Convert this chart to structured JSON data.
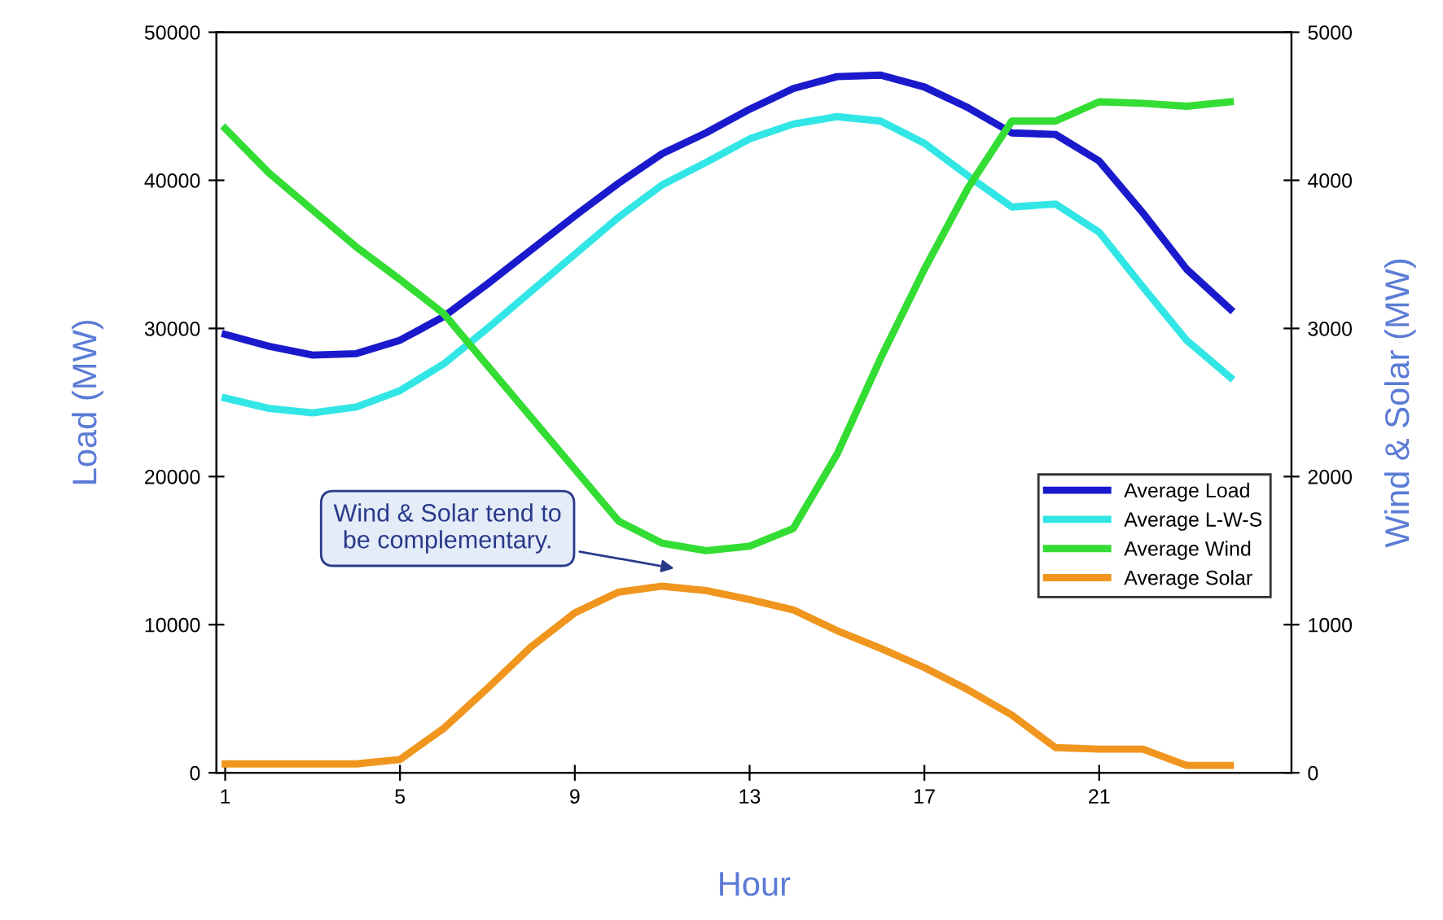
{
  "chart_data": {
    "type": "line",
    "xlabel": "Hour",
    "ylabel": "Load (MW)",
    "y2label": "Wind & Solar (MW)",
    "x": [
      1,
      2,
      3,
      4,
      5,
      6,
      7,
      8,
      9,
      10,
      11,
      12,
      13,
      14,
      15,
      16,
      17,
      18,
      19,
      20,
      21,
      22,
      23,
      24
    ],
    "xlim": [
      0.8,
      25.4
    ],
    "xticks": [
      1,
      5,
      9,
      13,
      17,
      21
    ],
    "ylim": [
      0,
      50000
    ],
    "yticks": [
      0,
      10000,
      20000,
      30000,
      40000,
      50000
    ],
    "y2lim": [
      0,
      5000
    ],
    "y2ticks": [
      0,
      1000,
      2000,
      3000,
      4000,
      5000
    ],
    "grid": false,
    "legend": "right",
    "marker": "none",
    "line_style": "solid",
    "series": [
      {
        "name": "Average Load",
        "color": "#1a1acc",
        "values": [
          29600,
          28800,
          28200,
          28300,
          29200,
          30800,
          33000,
          35300,
          37600,
          39800,
          41800,
          43200,
          44800,
          46200,
          47000,
          47100,
          46300,
          44900,
          43200,
          43100,
          41300,
          37800,
          34000,
          31300
        ]
      },
      {
        "name": "Average L-W-S",
        "color": "#33e6e6",
        "values": [
          25300,
          24600,
          24300,
          24700,
          25800,
          27600,
          30000,
          32500,
          35000,
          37500,
          39700,
          41200,
          42800,
          43800,
          44300,
          44000,
          42500,
          40300,
          38200,
          38400,
          36500,
          32800,
          29200,
          26700
        ]
      },
      {
        "name": "Average Wind",
        "color": "#33dd33",
        "axis": "y2",
        "values": [
          4350,
          4050,
          3800,
          3550,
          3330,
          3100,
          2750,
          2400,
          2050,
          1700,
          1550,
          1500,
          1530,
          1650,
          2150,
          2800,
          3400,
          3950,
          4400,
          4400,
          4530,
          4520,
          4500,
          4530
        ]
      },
      {
        "name": "Average Solar",
        "color": "#f0961e",
        "axis": "y2",
        "values": [
          60,
          60,
          60,
          60,
          90,
          300,
          570,
          850,
          1080,
          1220,
          1260,
          1230,
          1170,
          1100,
          960,
          840,
          710,
          560,
          390,
          170,
          160,
          160,
          50,
          50
        ]
      }
    ],
    "annotations": [
      "Wind & Solar tend to\nbe complementary."
    ]
  }
}
